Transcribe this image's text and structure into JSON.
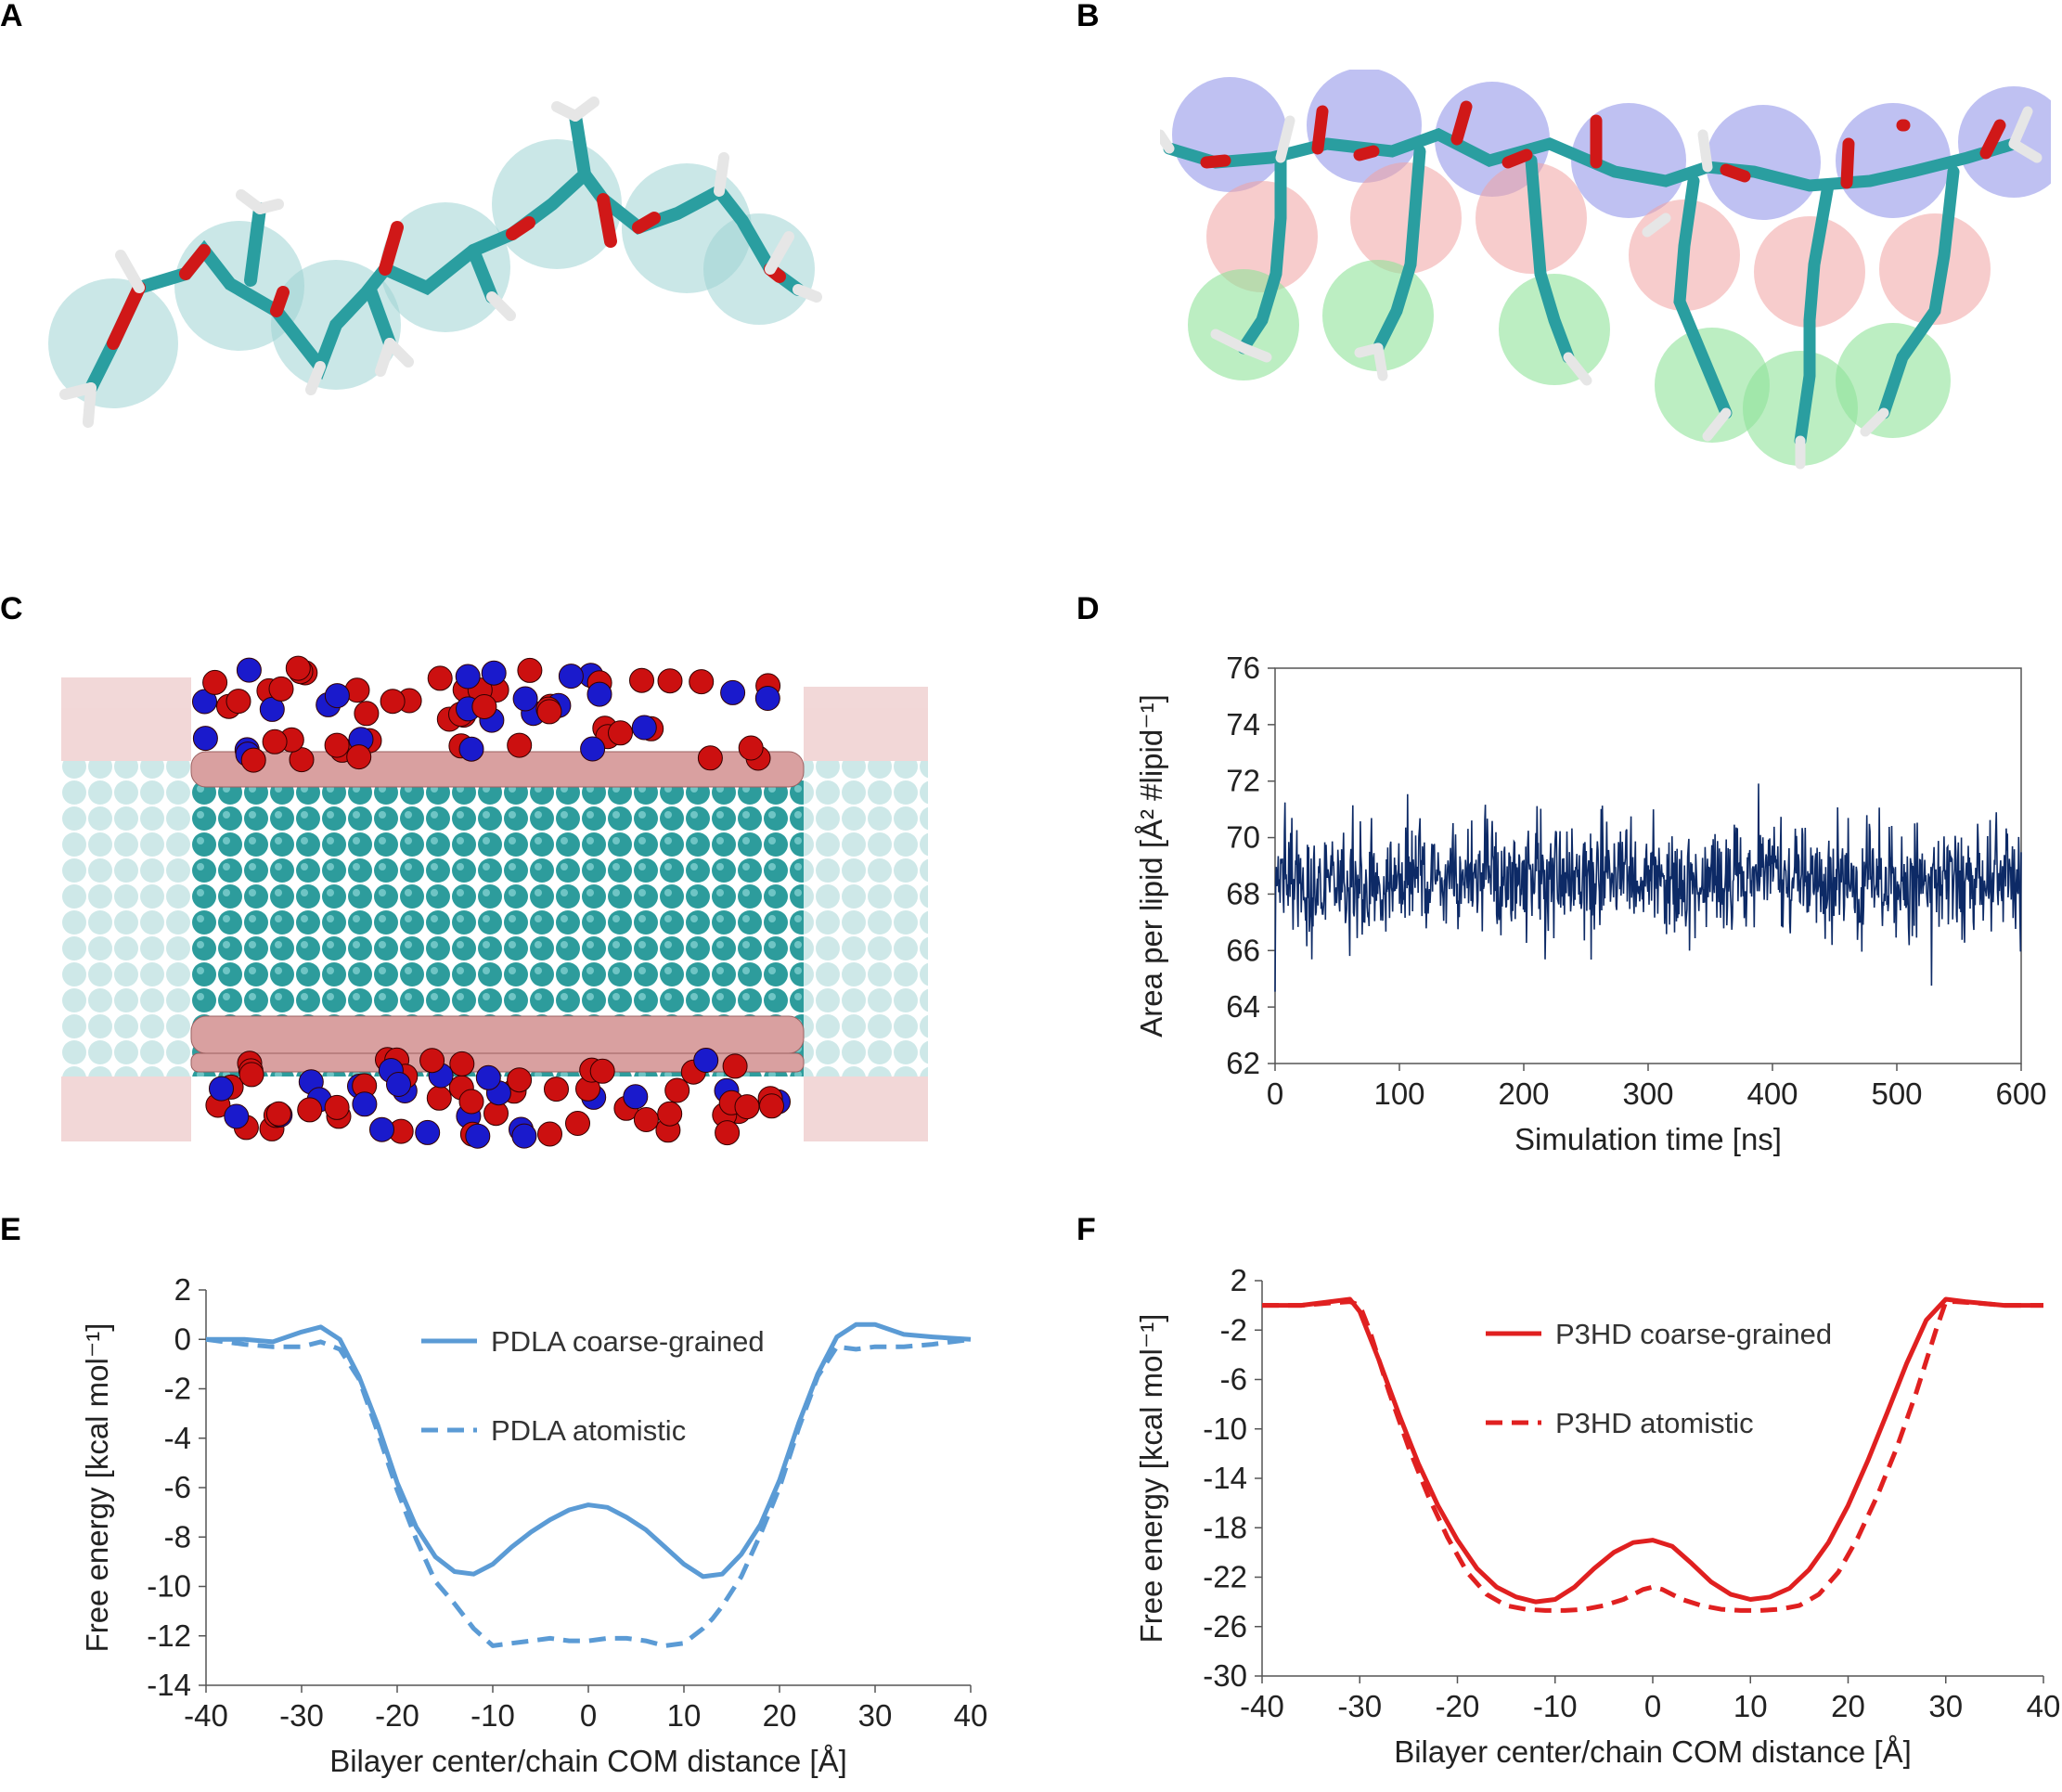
{
  "panels": {
    "a": "A",
    "b": "B",
    "c": "C",
    "d": "D",
    "e": "E",
    "f": "F"
  },
  "colors": {
    "cyan_atom": "#2a9ea0",
    "red_atom": "#d01818",
    "white_atom": "#e6e6e6",
    "cg_bead_cyan": "#9fd3d3",
    "cg_bead_blue": "#8a8ee8",
    "cg_bead_red": "#f0a3a3",
    "cg_bead_green": "#8fe39a",
    "lipid_blue": "#1a1acc",
    "lipid_red": "#cc1010",
    "lipid_pink": "#d9a0a0",
    "lipid_teal": "#2d9c9c",
    "series_d": "#0d2a66",
    "series_e": "#5b9bd5",
    "series_f": "#e02020"
  },
  "chart_data": [
    {
      "panel": "D",
      "type": "line",
      "xlabel": "Simulation time [ns]",
      "ylabel": "Area per lipid [Å² #lipid⁻¹]",
      "xlim": [
        0,
        600
      ],
      "ylim": [
        62,
        76
      ],
      "xticks": [
        "0",
        "100",
        "200",
        "300",
        "400",
        "500",
        "600"
      ],
      "yticks": [
        "62",
        "64",
        "66",
        "68",
        "70",
        "72",
        "74",
        "76"
      ],
      "grid": false,
      "series": [
        {
          "mean": 68.5,
          "noise_sd": 1.0,
          "min": 63.8,
          "max": 73.6,
          "n_points": 1200
        }
      ]
    },
    {
      "panel": "E",
      "type": "line",
      "xlabel": "Bilayer center/chain COM distance [Å]",
      "ylabel": "Free energy [kcal mol⁻¹]",
      "xlim": [
        -40,
        40
      ],
      "ylim": [
        -14,
        2
      ],
      "xticks": [
        "-40",
        "-30",
        "-20",
        "-10",
        "0",
        "10",
        "20",
        "30",
        "40"
      ],
      "yticks": [
        "-14",
        "-12",
        "-10",
        "-8",
        "-6",
        "-4",
        "-2",
        "0",
        "2"
      ],
      "legend_position": "top-center",
      "series": [
        {
          "name": "PDLA coarse-grained",
          "style": "solid",
          "x": [
            -40,
            -36,
            -33,
            -30,
            -28,
            -26,
            -24,
            -22,
            -20,
            -18,
            -16,
            -14,
            -12,
            -10,
            -8,
            -6,
            -4,
            -2,
            0,
            2,
            4,
            6,
            8,
            10,
            12,
            14,
            16,
            18,
            20,
            22,
            24,
            26,
            28,
            30,
            33,
            36,
            40
          ],
          "y": [
            0.0,
            0.0,
            -0.1,
            0.3,
            0.5,
            0.0,
            -1.5,
            -3.5,
            -5.8,
            -7.6,
            -8.8,
            -9.4,
            -9.5,
            -9.1,
            -8.4,
            -7.8,
            -7.3,
            -6.9,
            -6.7,
            -6.8,
            -7.2,
            -7.7,
            -8.4,
            -9.1,
            -9.6,
            -9.5,
            -8.7,
            -7.5,
            -5.7,
            -3.4,
            -1.4,
            0.1,
            0.6,
            0.6,
            0.2,
            0.1,
            0.0
          ]
        },
        {
          "name": "PDLA atomistic",
          "style": "dashed",
          "x": [
            -40,
            -36,
            -33,
            -30,
            -28,
            -26,
            -24,
            -22,
            -20,
            -18,
            -16,
            -14,
            -13,
            -12,
            -10,
            -8,
            -6,
            -4,
            -2,
            0,
            2,
            4,
            6,
            8,
            10,
            12,
            13,
            14,
            16,
            18,
            20,
            22,
            24,
            26,
            28,
            30,
            33,
            36,
            40
          ],
          "y": [
            0.0,
            -0.2,
            -0.3,
            -0.3,
            -0.1,
            -0.4,
            -1.6,
            -3.8,
            -6.1,
            -8.1,
            -9.8,
            -10.7,
            -11.2,
            -11.7,
            -12.4,
            -12.3,
            -12.2,
            -12.1,
            -12.2,
            -12.2,
            -12.1,
            -12.1,
            -12.2,
            -12.4,
            -12.3,
            -11.7,
            -11.3,
            -10.8,
            -9.6,
            -7.9,
            -6.0,
            -3.6,
            -1.5,
            -0.3,
            -0.4,
            -0.3,
            -0.3,
            -0.2,
            0.0
          ]
        }
      ]
    },
    {
      "panel": "F",
      "type": "line",
      "xlabel": "Bilayer center/chain COM distance [Å]",
      "ylabel": "Free energy [kcal mol⁻¹]",
      "xlim": [
        -40,
        40
      ],
      "ylim": [
        -30,
        2
      ],
      "xticks": [
        "-40",
        "-30",
        "-20",
        "-10",
        "0",
        "10",
        "20",
        "30",
        "40"
      ],
      "yticks": [
        "-30",
        "-26",
        "-22",
        "-18",
        "-14",
        "-10",
        "-6",
        "-2",
        "2"
      ],
      "legend_position": "top-center",
      "series": [
        {
          "name": "P3HD coarse-grained",
          "style": "solid",
          "x": [
            -40,
            -36,
            -33,
            -31,
            -30,
            -28,
            -26,
            -24,
            -22,
            -20,
            -18,
            -16,
            -14,
            -12,
            -10,
            -8,
            -6,
            -4,
            -2,
            0,
            2,
            4,
            6,
            8,
            10,
            12,
            14,
            16,
            18,
            20,
            22,
            24,
            26,
            28,
            30,
            32,
            36,
            40
          ],
          "y": [
            0.0,
            0.0,
            0.3,
            0.5,
            -0.5,
            -4.5,
            -8.8,
            -12.8,
            -16.2,
            -19.0,
            -21.3,
            -22.8,
            -23.6,
            -24.0,
            -23.8,
            -22.8,
            -21.3,
            -20.0,
            -19.2,
            -19.0,
            -19.5,
            -20.9,
            -22.4,
            -23.4,
            -23.8,
            -23.6,
            -22.9,
            -21.4,
            -19.2,
            -16.2,
            -12.6,
            -8.7,
            -4.7,
            -1.2,
            0.5,
            0.3,
            0.0,
            0.0
          ]
        },
        {
          "name": "P3HD atomistic",
          "style": "dashed",
          "x": [
            -40,
            -36,
            -33,
            -31,
            -30,
            -29,
            -27,
            -25,
            -23,
            -21,
            -19,
            -17,
            -15,
            -13,
            -11,
            -9,
            -7,
            -5,
            -3,
            -1,
            0,
            1,
            3,
            5,
            7,
            9,
            11,
            13,
            15,
            17,
            19,
            21,
            23,
            25,
            27,
            29,
            30,
            31,
            33,
            36,
            40
          ],
          "y": [
            0.0,
            0.0,
            0.2,
            0.3,
            0.0,
            -2.0,
            -7.0,
            -11.5,
            -15.4,
            -18.8,
            -21.6,
            -23.4,
            -24.3,
            -24.6,
            -24.7,
            -24.7,
            -24.6,
            -24.3,
            -23.8,
            -23.0,
            -22.8,
            -23.0,
            -23.8,
            -24.3,
            -24.6,
            -24.7,
            -24.7,
            -24.6,
            -24.3,
            -23.4,
            -21.6,
            -18.8,
            -15.4,
            -11.5,
            -7.0,
            -2.0,
            0.3,
            0.3,
            0.2,
            0.0,
            0.0
          ]
        }
      ]
    }
  ]
}
